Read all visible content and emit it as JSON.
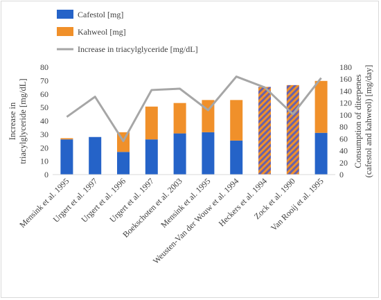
{
  "chart_data": {
    "type": "bar",
    "subtype": "stacked bar with line on primary axis",
    "categories": [
      "Mensink et al. 1995",
      "Urgert et al. 1997",
      "Urgert et al. 1996",
      "Urgert et al. 1997",
      "Boekschoten et al. 2003",
      "Mensink et al. 1995",
      "Weusten-Van der Wouw et al. 1994",
      "Heckers et al. 1994",
      "Zock et al. 1990",
      "Van Rooij et al. 1995"
    ],
    "series": [
      {
        "name": "Cafestol [mg]",
        "color": "#2563c8",
        "axis": "right",
        "values": [
          59,
          63,
          38,
          59,
          69,
          71,
          57,
          null,
          null,
          70
        ]
      },
      {
        "name": "Kahweol [mg]",
        "color": "#f0902a",
        "axis": "right",
        "values": [
          2,
          0,
          33,
          55,
          51,
          54,
          68,
          null,
          null,
          87
        ]
      },
      {
        "name": "Increase in triacylglyceride [mg/dL]",
        "color": "#a6a6a6",
        "type": "line",
        "axis": "left",
        "values": [
          43,
          58,
          25,
          63,
          64,
          48,
          73,
          65,
          45,
          72
        ]
      }
    ],
    "combined_totals": {
      "note": "Heckers et al. 1994 and Zock et al. 1990 shown as hatched combined bars",
      "values": [
        null,
        null,
        null,
        null,
        null,
        null,
        null,
        147,
        150,
        null
      ]
    },
    "left_axis": {
      "label": "Increase in triacylglyceride [mg/dL]",
      "ylim": [
        0,
        80
      ],
      "ticks": [
        0,
        10,
        20,
        30,
        40,
        50,
        60,
        70,
        80
      ]
    },
    "right_axis": {
      "label": "Consumption of diterpenes (cafestol and kahweol) [mg/day]",
      "ylim": [
        0,
        180
      ],
      "ticks": [
        0,
        20,
        40,
        60,
        80,
        100,
        120,
        140,
        160,
        180
      ]
    },
    "legend_position": "top-left",
    "grid": false
  },
  "legend": {
    "cafestol": "Cafestol [mg]",
    "kahweol": "Kahweol [mg]",
    "line": "Increase in triacylglyceride [mg/dL]"
  },
  "axis_titles": {
    "left_line1": "Increase in",
    "left_line2": "triacylglyceride [mg/dL]",
    "right_line1": "Consumption of diterpenes",
    "right_line2": "(cafestol and kahweol) [mg/day]"
  }
}
